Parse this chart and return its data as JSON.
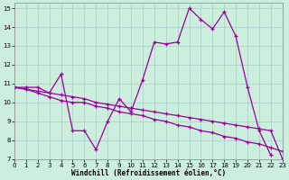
{
  "bg_color": "#cceedd",
  "grid_color": "#aacccc",
  "line_color": "#990099",
  "xlim": [
    0,
    23
  ],
  "ylim": [
    7,
    15.3
  ],
  "xticks": [
    0,
    1,
    2,
    3,
    4,
    5,
    6,
    7,
    8,
    9,
    10,
    11,
    12,
    13,
    14,
    15,
    16,
    17,
    18,
    19,
    20,
    21,
    22,
    23
  ],
  "yticks": [
    7,
    8,
    9,
    10,
    11,
    12,
    13,
    14,
    15
  ],
  "xlabel": "Windchill (Refroidissement éolien,°C)",
  "series1_x": [
    0,
    1,
    2,
    3,
    4,
    5,
    6,
    7,
    8,
    9,
    10,
    11,
    12,
    13,
    14,
    15,
    16,
    17,
    18,
    19,
    20,
    21,
    22
  ],
  "series1_y": [
    10.8,
    10.8,
    10.8,
    10.5,
    11.5,
    8.5,
    8.5,
    7.5,
    9.0,
    10.2,
    9.5,
    11.2,
    13.2,
    13.1,
    13.2,
    15.0,
    14.4,
    13.9,
    14.8,
    13.5,
    10.8,
    8.5,
    7.2
  ],
  "series2_x": [
    0,
    1,
    2,
    3,
    4,
    5,
    6,
    7,
    8,
    9,
    10,
    11,
    12,
    13,
    14,
    15,
    16,
    17,
    18,
    19,
    20,
    21,
    22,
    23
  ],
  "series2_y": [
    10.8,
    10.7,
    10.5,
    10.3,
    10.1,
    10.0,
    10.0,
    9.8,
    9.7,
    9.5,
    9.4,
    9.3,
    9.1,
    9.0,
    8.8,
    8.7,
    8.5,
    8.4,
    8.2,
    8.1,
    7.9,
    7.8,
    7.6,
    7.4
  ],
  "series3_x": [
    0,
    1,
    2,
    3,
    4,
    5,
    6,
    7,
    8,
    9,
    10,
    11,
    12,
    13,
    14,
    15,
    16,
    17,
    18,
    19,
    20,
    21,
    22,
    23
  ],
  "series3_y": [
    10.8,
    10.7,
    10.6,
    10.5,
    10.4,
    10.3,
    10.2,
    10.0,
    9.9,
    9.8,
    9.7,
    9.6,
    9.5,
    9.4,
    9.3,
    9.2,
    9.1,
    9.0,
    8.9,
    8.8,
    8.7,
    8.6,
    8.5,
    7.0
  ]
}
